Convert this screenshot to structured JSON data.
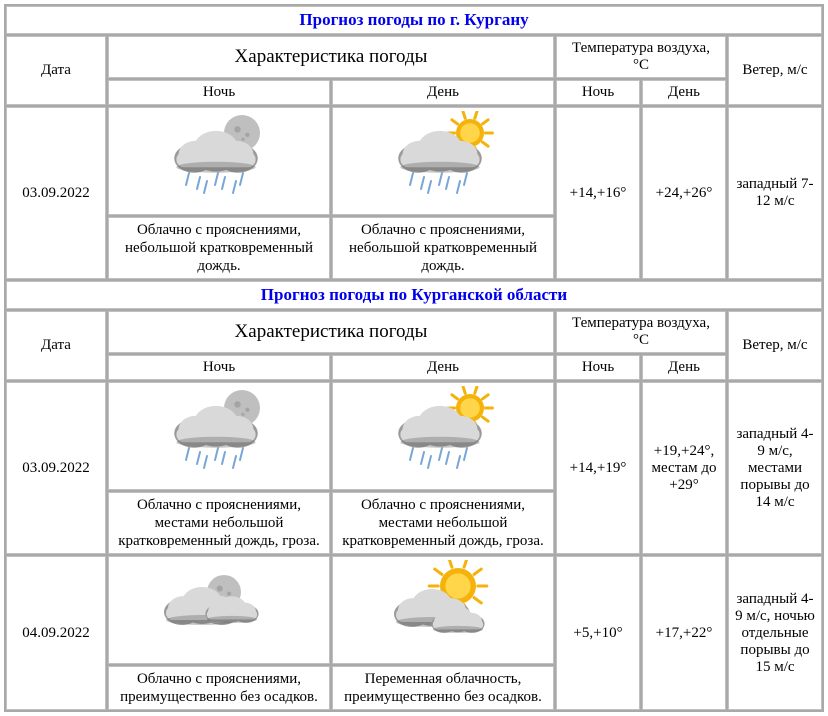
{
  "colors": {
    "section_title": "#0000ee",
    "border": "#c0c0c0",
    "table_bg": "#a9a9a9",
    "cell_bg": "#ffffff",
    "text": "#000000",
    "cloud_light": "#d9d9d9",
    "cloud_dark": "#9a9a9a",
    "cloud_shadow": "#6e6e6e",
    "moon": "#bfbfbf",
    "moon_dark": "#8a8a8a",
    "sun": "#f5b20a",
    "sun_inner": "#ffd54a",
    "rain": "#7aa6d6"
  },
  "headers": {
    "date": "Дата",
    "char": "Характеристика погоды",
    "temp": "Температура воздуха, °C",
    "wind": "Ветер, м/с",
    "night": "Ночь",
    "day": "День"
  },
  "sections": [
    {
      "title": "Прогноз погоды по г. Кургану",
      "rows": [
        {
          "date": "03.09.2022",
          "night_icon": "moon_cloud_rain",
          "day_icon": "sun_cloud_rain",
          "night_desc": "Облачно с прояснениями, небольшой кратковременный дождь.",
          "day_desc": "Облачно с прояснениями, небольшой кратковременный дождь.",
          "night_temp": "+14,+16°",
          "day_temp": "+24,+26°",
          "wind": "западный 7-12 м/с"
        }
      ]
    },
    {
      "title": "Прогноз погоды по Курганской области",
      "rows": [
        {
          "date": "03.09.2022",
          "night_icon": "moon_cloud_rain",
          "day_icon": "sun_cloud_rain",
          "night_desc": "Облачно с прояснениями, местами небольшой кратковременный дождь, гроза.",
          "day_desc": "Облачно с прояснениями, местами небольшой кратковременный дождь, гроза.",
          "night_temp": "+14,+19°",
          "day_temp": "+19,+24°, местам до +29°",
          "wind": "западный 4-9 м/с, местами порывы до 14 м/с"
        },
        {
          "date": "04.09.2022",
          "night_icon": "moon_cloud",
          "day_icon": "sun_cloud",
          "night_desc": "Облачно с прояснениями, преимущественно без осадков.",
          "day_desc": "Переменная облачность, преимущественно без осадков.",
          "night_temp": "+5,+10°",
          "day_temp": "+17,+22°",
          "wind": "западный 4-9 м/с, ночью отдельные порывы до 15 м/с"
        }
      ]
    }
  ]
}
